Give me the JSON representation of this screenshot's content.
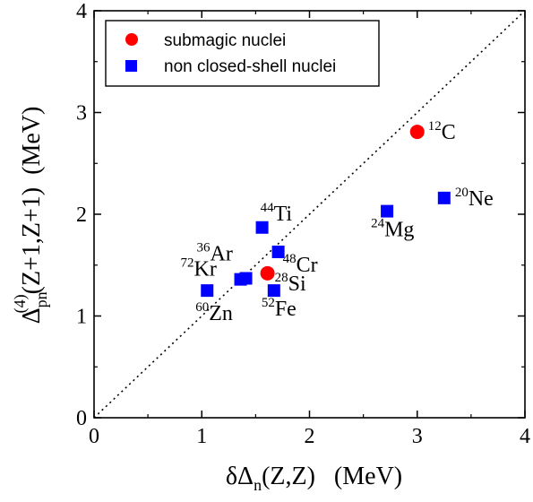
{
  "chart_data": {
    "type": "scatter",
    "xlim": [
      0,
      4
    ],
    "ylim": [
      0,
      4
    ],
    "xticks": [
      "0",
      "1",
      "2",
      "3",
      "4"
    ],
    "yticks": [
      "0",
      "1",
      "2",
      "3",
      "4"
    ],
    "xlabel": {
      "pre": "δΔ",
      "sub": "n",
      "post": "(Z,Z)   (MeV)"
    },
    "ylabel": {
      "main": "Δ",
      "sub": "pn",
      "sup": "(4)",
      "post": "(Z+1,Z+1)  (MeV)"
    },
    "reference_line": {
      "style": "dotted",
      "from": [
        0,
        0
      ],
      "to": [
        4,
        4
      ]
    },
    "legend_position": "top-left",
    "series": [
      {
        "name": "submagic nuclei",
        "marker": "circle",
        "color": "#ff0000",
        "points": [
          {
            "x": 3.0,
            "y": 2.81,
            "mass": "12",
            "element": "C",
            "label_side": "right"
          },
          {
            "x": 1.61,
            "y": 1.42,
            "mass": "28",
            "element": "Si",
            "label_side": "right-below"
          }
        ]
      },
      {
        "name": "non closed-shell nuclei",
        "marker": "square",
        "color": "#0000ff",
        "points": [
          {
            "x": 3.25,
            "y": 2.16,
            "mass": "20",
            "element": "Ne",
            "label_side": "right"
          },
          {
            "x": 2.72,
            "y": 2.03,
            "mass": "24",
            "element": "Mg",
            "label_side": "below-left"
          },
          {
            "x": 1.56,
            "y": 1.87,
            "mass": "44",
            "element": "Ti",
            "label_side": "above"
          },
          {
            "x": 1.71,
            "y": 1.63,
            "mass": "48",
            "element": "Cr",
            "label_side": "right"
          },
          {
            "x": 1.41,
            "y": 1.37,
            "mass": "36",
            "element": "Ar",
            "label_side": "above-left"
          },
          {
            "x": 1.36,
            "y": 1.36,
            "mass": "72",
            "element": "Kr",
            "label_side": "left"
          },
          {
            "x": 1.05,
            "y": 1.25,
            "mass": "60",
            "element": "Zn",
            "label_side": "below"
          },
          {
            "x": 1.67,
            "y": 1.25,
            "mass": "52",
            "element": "Fe",
            "label_side": "below"
          }
        ]
      }
    ]
  }
}
